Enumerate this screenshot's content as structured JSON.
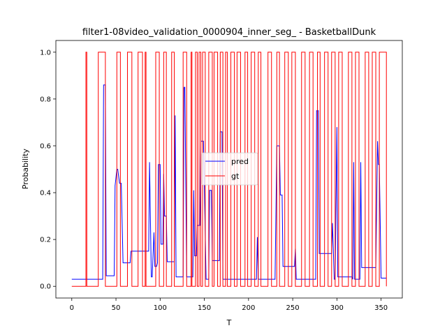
{
  "chart_data": {
    "type": "line",
    "title": "filter1-08video_validation_0000904_inner_seg_ - BasketballDunk",
    "xlabel": "T",
    "ylabel": "Probability",
    "xlim": [
      -18,
      374
    ],
    "ylim": [
      -0.05,
      1.05
    ],
    "xticks": [
      0,
      50,
      100,
      150,
      200,
      250,
      300,
      350
    ],
    "yticks": [
      0.0,
      0.2,
      0.4,
      0.6,
      0.8,
      1.0
    ],
    "legend_position": "center",
    "colors": {
      "pred": "#0000ff",
      "gt": "#ff0000"
    },
    "series": [
      {
        "name": "pred",
        "x": [
          0,
          15,
          30,
          35,
          36,
          38,
          39,
          40,
          48,
          49,
          51,
          52,
          54,
          55,
          56,
          58,
          59,
          60,
          66,
          67,
          69,
          70,
          76,
          82,
          87,
          88,
          90,
          91,
          93,
          94,
          96,
          97,
          98,
          100,
          101,
          102,
          103,
          104,
          105,
          106,
          107,
          108,
          109,
          110,
          111,
          116,
          117,
          118,
          119,
          120,
          121,
          126,
          127,
          128,
          130,
          131,
          137,
          138,
          139,
          141,
          142,
          145,
          146,
          148,
          149,
          152,
          153,
          155,
          156,
          158,
          159,
          161,
          162,
          167,
          168,
          170,
          171,
          173,
          174,
          178,
          180,
          185,
          190,
          200,
          209,
          210,
          211,
          212,
          214,
          215,
          230,
          231,
          232,
          233,
          234,
          235,
          236,
          238,
          239,
          240,
          252,
          253,
          254,
          255,
          257,
          270,
          276,
          277,
          279,
          280,
          281,
          283,
          284,
          292,
          294,
          295,
          297,
          298,
          300,
          301,
          302,
          303,
          305,
          310,
          317,
          318,
          319,
          320,
          321,
          323,
          325,
          326,
          327,
          328,
          330,
          334,
          335,
          340,
          341,
          342,
          343,
          344,
          346,
          347,
          348,
          350,
          356
        ],
        "y": [
          0.03,
          0.03,
          0.03,
          0.03,
          0.86,
          0.86,
          0.045,
          0.045,
          0.045,
          0.43,
          0.5,
          0.5,
          0.44,
          0.44,
          0.44,
          0.1,
          0.1,
          0.1,
          0.1,
          0.15,
          0.15,
          0.15,
          0.15,
          0.15,
          0.15,
          0.53,
          0.04,
          0.04,
          0.23,
          0.085,
          0.085,
          0.1,
          0.52,
          0.52,
          0.18,
          0.18,
          0.18,
          0.48,
          0.3,
          0.3,
          0.3,
          0.105,
          0.105,
          0.105,
          0.105,
          0.105,
          0.73,
          0.04,
          0.04,
          0.04,
          0.04,
          0.04,
          0.85,
          0.85,
          0.04,
          0.04,
          0.04,
          0.41,
          0.13,
          0.13,
          0.26,
          0.26,
          0.62,
          0.62,
          0.62,
          0.03,
          0.03,
          0.03,
          0.41,
          0.41,
          0.11,
          0.11,
          0.11,
          0.11,
          0.66,
          0.66,
          0.03,
          0.03,
          0.03,
          0.03,
          0.03,
          0.03,
          0.03,
          0.03,
          0.03,
          0.21,
          0.03,
          0.03,
          0.03,
          0.03,
          0.03,
          0.31,
          0.6,
          0.6,
          0.6,
          0.6,
          0.39,
          0.39,
          0.085,
          0.085,
          0.085,
          0.16,
          0.03,
          0.03,
          0.03,
          0.03,
          0.03,
          0.75,
          0.75,
          0.14,
          0.14,
          0.14,
          0.14,
          0.14,
          0.14,
          0.27,
          0.03,
          0.03,
          0.68,
          0.04,
          0.04,
          0.04,
          0.04,
          0.04,
          0.04,
          0.03,
          0.53,
          0.03,
          0.03,
          0.03,
          0.03,
          0.03,
          0.53,
          0.08,
          0.08,
          0.08,
          0.08,
          0.08,
          0.08,
          0.08,
          0.08,
          0.08,
          0.62,
          0.52,
          0.52,
          0.035,
          0.035
        ]
      },
      {
        "name": "gt",
        "shape": "step",
        "x": [
          0,
          16,
          17,
          30,
          38,
          51,
          55,
          63,
          68,
          75,
          80,
          83,
          84,
          95,
          99,
          104,
          107,
          113,
          116,
          126,
          130,
          135,
          136,
          140,
          142,
          144,
          146,
          148,
          151,
          155,
          159,
          161,
          165,
          168,
          171,
          174,
          176,
          180,
          184,
          187,
          191,
          196,
          199,
          203,
          207,
          211,
          214,
          222,
          226,
          232,
          235,
          241,
          245,
          249,
          253,
          260,
          264,
          269,
          273,
          278,
          281,
          286,
          290,
          294,
          298,
          302,
          306,
          313,
          317,
          321,
          325,
          332,
          336,
          340,
          344,
          348,
          356
        ],
        "y": [
          0,
          1,
          0,
          1,
          0,
          1,
          0,
          1,
          0,
          1,
          0,
          1,
          0,
          1,
          0,
          1,
          0,
          1,
          0,
          1,
          0,
          1,
          0,
          1,
          0,
          1,
          0,
          1,
          0,
          1,
          0,
          1,
          0,
          1,
          0,
          1,
          0,
          1,
          0,
          1,
          0,
          1,
          0,
          1,
          0,
          1,
          0,
          1,
          0,
          1,
          0,
          1,
          0,
          1,
          0,
          1,
          0,
          1,
          0,
          1,
          0,
          1,
          0,
          1,
          0,
          1,
          0,
          1,
          0,
          1,
          0,
          1,
          0,
          1,
          0,
          1,
          0
        ]
      }
    ]
  }
}
